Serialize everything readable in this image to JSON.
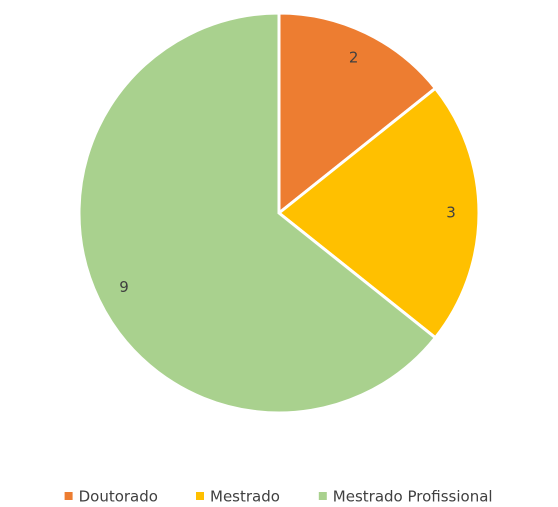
{
  "chart_data": {
    "type": "pie",
    "categories": [
      "Doutorado",
      "Mestrado",
      "Mestrado Profissional"
    ],
    "values": [
      2,
      3,
      9
    ],
    "colors": [
      "#ed7d31",
      "#ffc000",
      "#a9d18e"
    ],
    "legend": "bottom"
  }
}
